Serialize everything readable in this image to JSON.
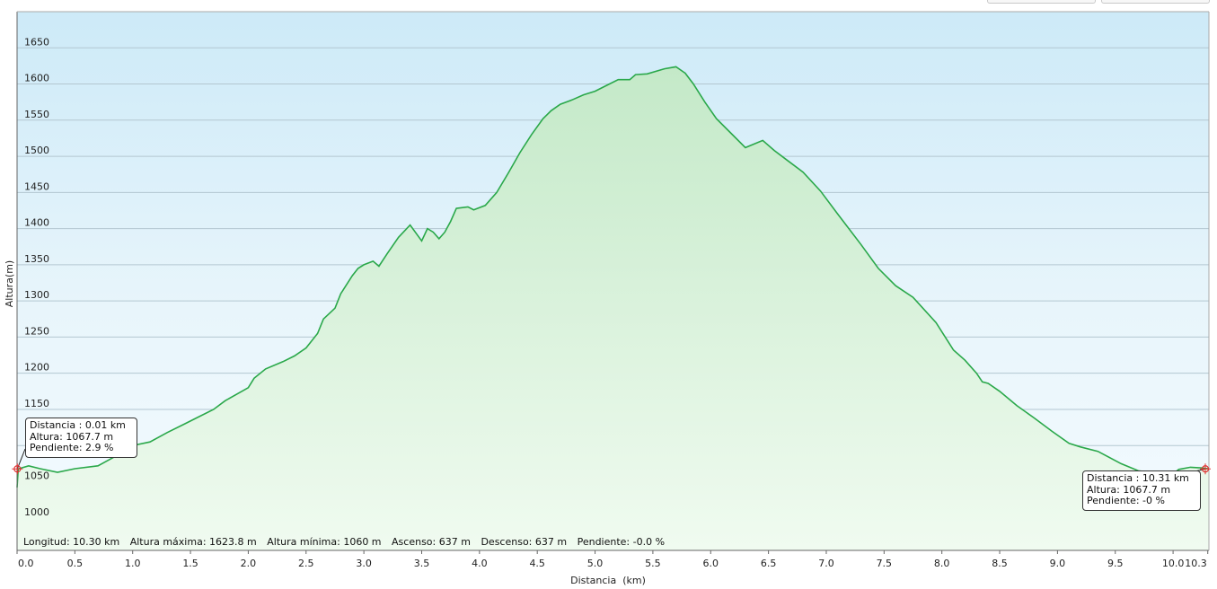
{
  "chart_data": {
    "type": "area",
    "xlabel": "Distancia  (km)",
    "ylabel": "Altura(m)",
    "xlim": [
      0,
      10.31
    ],
    "ylim": [
      955,
      1700
    ],
    "x_ticks": [
      "0.0",
      "0.5",
      "1.0",
      "1.5",
      "2.0",
      "2.5",
      "3.0",
      "3.5",
      "4.0",
      "4.5",
      "5.0",
      "5.5",
      "6.0",
      "6.5",
      "7.0",
      "7.5",
      "8.0",
      "8.5",
      "9.0",
      "9.5",
      "10.0",
      "10.3"
    ],
    "y_ticks": [
      "1000",
      "1050",
      "1100",
      "1150",
      "1200",
      "1250",
      "1300",
      "1350",
      "1400",
      "1450",
      "1500",
      "1550",
      "1600",
      "1650"
    ],
    "grid": true,
    "line_color": "#2aa84a",
    "x": [
      0.0,
      0.01,
      0.1,
      0.2,
      0.35,
      0.5,
      0.7,
      0.85,
      1.0,
      1.15,
      1.3,
      1.45,
      1.55,
      1.7,
      1.8,
      2.0,
      2.05,
      2.15,
      2.3,
      2.4,
      2.5,
      2.6,
      2.65,
      2.75,
      2.8,
      2.9,
      2.95,
      3.0,
      3.08,
      3.13,
      3.2,
      3.3,
      3.4,
      3.5,
      3.55,
      3.6,
      3.65,
      3.7,
      3.75,
      3.8,
      3.9,
      3.95,
      4.05,
      4.15,
      4.25,
      4.35,
      4.45,
      4.55,
      4.62,
      4.7,
      4.8,
      4.9,
      5.0,
      5.1,
      5.2,
      5.3,
      5.35,
      5.45,
      5.6,
      5.7,
      5.78,
      5.85,
      5.95,
      6.05,
      6.2,
      6.3,
      6.45,
      6.55,
      6.65,
      6.8,
      6.95,
      7.1,
      7.3,
      7.45,
      7.6,
      7.75,
      7.95,
      8.1,
      8.2,
      8.3,
      8.35,
      8.4,
      8.5,
      8.65,
      8.8,
      8.95,
      9.1,
      9.2,
      9.35,
      9.55,
      9.7,
      9.85,
      9.95,
      10.0,
      10.05,
      10.15,
      10.25,
      10.31
    ],
    "y": [
      1042,
      1067.7,
      1072,
      1068,
      1063,
      1068,
      1072,
      1085,
      1100,
      1105,
      1118,
      1130,
      1138,
      1150,
      1162,
      1180,
      1193,
      1206,
      1216,
      1224,
      1235,
      1255,
      1275,
      1290,
      1310,
      1335,
      1345,
      1350,
      1355,
      1348,
      1365,
      1388,
      1405,
      1383,
      1400,
      1395,
      1386,
      1395,
      1410,
      1428,
      1430,
      1426,
      1432,
      1450,
      1477,
      1505,
      1530,
      1552,
      1563,
      1572,
      1578,
      1585,
      1590,
      1598,
      1606,
      1606,
      1613,
      1614,
      1621,
      1623.8,
      1615,
      1600,
      1575,
      1552,
      1528,
      1512,
      1522,
      1508,
      1496,
      1478,
      1452,
      1420,
      1378,
      1345,
      1321,
      1305,
      1270,
      1232,
      1218,
      1200,
      1188,
      1186,
      1175,
      1155,
      1138,
      1120,
      1103,
      1098,
      1092,
      1075,
      1065,
      1062,
      1060,
      1061,
      1067,
      1070,
      1069,
      1067.7
    ]
  },
  "info_start": {
    "distance": "Distancia : 0.01 km",
    "altitude": "Altura: 1067.7 m",
    "slope": "Pendiente: 2.9 %"
  },
  "info_end": {
    "distance": "Distancia : 10.31 km",
    "altitude": "Altura: 1067.7 m",
    "slope": "Pendiente: -0 %"
  },
  "summary": {
    "length": "Longitud: 10.30 km",
    "max_alt": "Altura máxima: 1623.8 m",
    "min_alt": "Altura mínima: 1060 m",
    "ascent": "Ascenso: 637 m",
    "descent": "Descenso: 637 m",
    "slope": "Pendiente: -0.0 %"
  }
}
